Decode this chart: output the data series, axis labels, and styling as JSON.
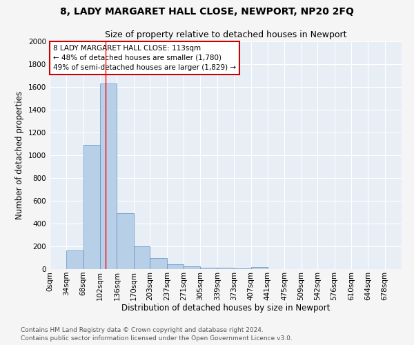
{
  "title": "8, LADY MARGARET HALL CLOSE, NEWPORT, NP20 2FQ",
  "subtitle": "Size of property relative to detached houses in Newport",
  "xlabel": "Distribution of detached houses by size in Newport",
  "ylabel": "Number of detached properties",
  "footnote1": "Contains HM Land Registry data © Crown copyright and database right 2024.",
  "footnote2": "Contains public sector information licensed under the Open Government Licence v3.0.",
  "bar_color": "#b8cfe8",
  "bar_edge_color": "#5b8ec4",
  "background_color": "#e8eef6",
  "grid_color": "#ffffff",
  "bin_labels": [
    "0sqm",
    "34sqm",
    "68sqm",
    "102sqm",
    "136sqm",
    "170sqm",
    "203sqm",
    "237sqm",
    "271sqm",
    "305sqm",
    "339sqm",
    "373sqm",
    "407sqm",
    "441sqm",
    "475sqm",
    "509sqm",
    "542sqm",
    "576sqm",
    "610sqm",
    "644sqm",
    "678sqm"
  ],
  "bin_edges": [
    0,
    34,
    68,
    102,
    136,
    170,
    203,
    237,
    271,
    305,
    339,
    373,
    407,
    441,
    475,
    509,
    542,
    576,
    610,
    644,
    678,
    712
  ],
  "bar_heights": [
    0,
    165,
    1090,
    1630,
    490,
    200,
    100,
    40,
    25,
    15,
    15,
    5,
    20,
    0,
    0,
    0,
    0,
    0,
    0,
    0,
    0
  ],
  "red_line_x": 113,
  "ylim": [
    0,
    2000
  ],
  "yticks": [
    0,
    200,
    400,
    600,
    800,
    1000,
    1200,
    1400,
    1600,
    1800,
    2000
  ],
  "annotation_line1": "8 LADY MARGARET HALL CLOSE: 113sqm",
  "annotation_line2": "← 48% of detached houses are smaller (1,780)",
  "annotation_line3": "49% of semi-detached houses are larger (1,829) →",
  "annotation_box_color": "#ffffff",
  "annotation_box_edge": "#cc0000",
  "title_fontsize": 10,
  "subtitle_fontsize": 9,
  "axis_label_fontsize": 8.5,
  "tick_fontsize": 7.5,
  "annotation_fontsize": 7.5,
  "footnote_fontsize": 6.5
}
